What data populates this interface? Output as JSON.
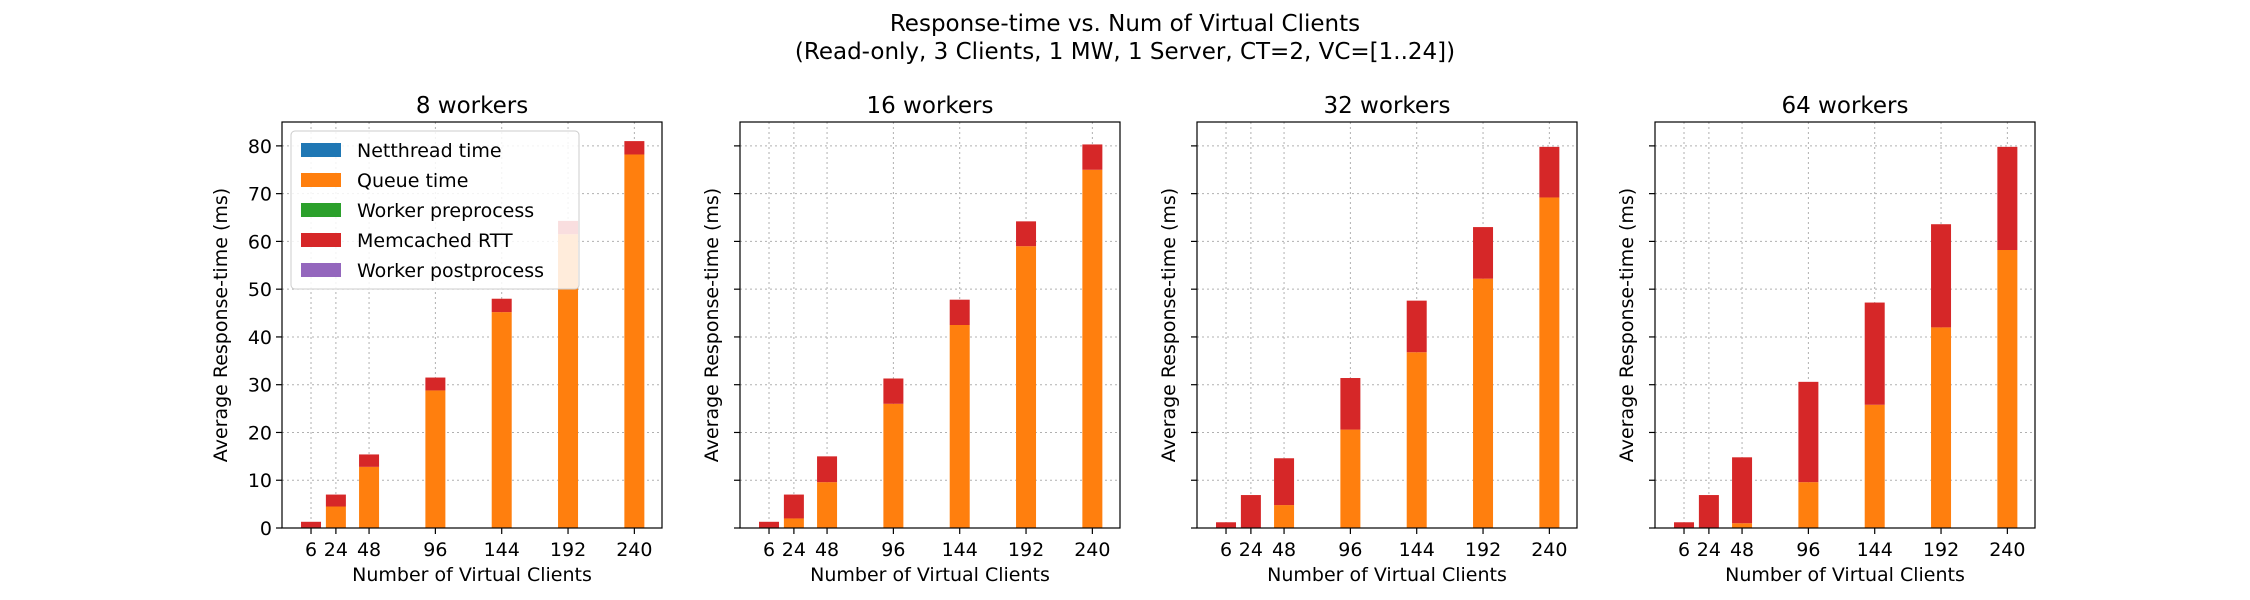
{
  "figure": {
    "title_line1": "Response-time vs. Num of Virtual Clients",
    "title_line2": "(Read-only, 3 Clients, 1 MW, 1 Server, CT=2, VC=[1..24])"
  },
  "colors": {
    "netthread": "#1f77b4",
    "queue": "#ff7f0e",
    "preprocess": "#2ca02c",
    "memcached": "#d62728",
    "postprocess": "#9467bd"
  },
  "legend": {
    "placement": "upper-left",
    "entries": [
      "Netthread time",
      "Queue time",
      "Worker preprocess",
      "Memcached RTT",
      "Worker postprocess"
    ]
  },
  "chart_data": [
    {
      "type": "bar",
      "stacked": true,
      "title": "8 workers",
      "xlabel": "Number of Virtual Clients",
      "ylabel": "Average Response-time (ms)",
      "ylim": [
        0,
        85
      ],
      "yticks": [
        0,
        10,
        20,
        30,
        40,
        50,
        60,
        70,
        80
      ],
      "xlim": [
        -15,
        260
      ],
      "grid": true,
      "x": [
        6,
        24,
        48,
        96,
        144,
        192,
        240
      ],
      "series": [
        {
          "name": "Netthread time",
          "values": [
            0,
            0,
            0,
            0,
            0,
            0,
            0
          ]
        },
        {
          "name": "Queue time",
          "values": [
            0.1,
            4.5,
            12.8,
            28.8,
            45.2,
            61.5,
            78.2
          ]
        },
        {
          "name": "Worker preprocess",
          "values": [
            0,
            0,
            0,
            0,
            0,
            0,
            0
          ]
        },
        {
          "name": "Memcached RTT",
          "values": [
            1.2,
            2.5,
            2.6,
            2.7,
            2.8,
            2.8,
            2.8
          ]
        },
        {
          "name": "Worker postprocess",
          "values": [
            0,
            0,
            0,
            0,
            0,
            0,
            0
          ]
        }
      ]
    },
    {
      "type": "bar",
      "stacked": true,
      "title": "16 workers",
      "xlabel": "Number of Virtual Clients",
      "ylabel": "Average Response-time (ms)",
      "ylim": [
        0,
        85
      ],
      "yticks": [
        0,
        10,
        20,
        30,
        40,
        50,
        60,
        70,
        80
      ],
      "xlim": [
        -15,
        260
      ],
      "grid": true,
      "x": [
        6,
        24,
        48,
        96,
        144,
        192,
        240
      ],
      "series": [
        {
          "name": "Netthread time",
          "values": [
            0,
            0,
            0,
            0,
            0,
            0,
            0
          ]
        },
        {
          "name": "Queue time",
          "values": [
            0.1,
            2.0,
            9.6,
            26.0,
            42.5,
            59.0,
            75.0
          ]
        },
        {
          "name": "Worker preprocess",
          "values": [
            0,
            0,
            0,
            0,
            0,
            0,
            0
          ]
        },
        {
          "name": "Memcached RTT",
          "values": [
            1.2,
            5.0,
            5.4,
            5.3,
            5.3,
            5.2,
            5.3
          ]
        },
        {
          "name": "Worker postprocess",
          "values": [
            0,
            0,
            0,
            0,
            0,
            0,
            0
          ]
        }
      ]
    },
    {
      "type": "bar",
      "stacked": true,
      "title": "32 workers",
      "xlabel": "Number of Virtual Clients",
      "ylabel": "Average Response-time (ms)",
      "ylim": [
        0,
        85
      ],
      "yticks": [
        0,
        10,
        20,
        30,
        40,
        50,
        60,
        70,
        80
      ],
      "xlim": [
        -15,
        260
      ],
      "grid": true,
      "x": [
        6,
        24,
        48,
        96,
        144,
        192,
        240
      ],
      "series": [
        {
          "name": "Netthread time",
          "values": [
            0,
            0,
            0,
            0,
            0,
            0,
            0
          ]
        },
        {
          "name": "Queue time",
          "values": [
            0.0,
            0.1,
            4.8,
            20.6,
            36.8,
            52.2,
            69.2
          ]
        },
        {
          "name": "Worker preprocess",
          "values": [
            0,
            0,
            0,
            0,
            0,
            0,
            0
          ]
        },
        {
          "name": "Memcached RTT",
          "values": [
            1.2,
            6.8,
            9.8,
            10.8,
            10.8,
            10.8,
            10.6
          ]
        },
        {
          "name": "Worker postprocess",
          "values": [
            0,
            0,
            0,
            0,
            0,
            0,
            0
          ]
        }
      ]
    },
    {
      "type": "bar",
      "stacked": true,
      "title": "64 workers",
      "xlabel": "Number of Virtual Clients",
      "ylabel": "Average Response-time (ms)",
      "ylim": [
        0,
        85
      ],
      "yticks": [
        0,
        10,
        20,
        30,
        40,
        50,
        60,
        70,
        80
      ],
      "xlim": [
        -15,
        260
      ],
      "grid": true,
      "x": [
        6,
        24,
        48,
        96,
        144,
        192,
        240
      ],
      "series": [
        {
          "name": "Netthread time",
          "values": [
            0,
            0,
            0,
            0,
            0,
            0,
            0
          ]
        },
        {
          "name": "Queue time",
          "values": [
            0.0,
            0.0,
            1.0,
            9.6,
            25.8,
            42.0,
            58.2
          ]
        },
        {
          "name": "Worker preprocess",
          "values": [
            0,
            0,
            0,
            0,
            0,
            0,
            0
          ]
        },
        {
          "name": "Memcached RTT",
          "values": [
            1.2,
            6.9,
            13.8,
            21.0,
            21.4,
            21.6,
            21.6
          ]
        },
        {
          "name": "Worker postprocess",
          "values": [
            0,
            0,
            0,
            0,
            0,
            0,
            0
          ]
        }
      ]
    }
  ]
}
